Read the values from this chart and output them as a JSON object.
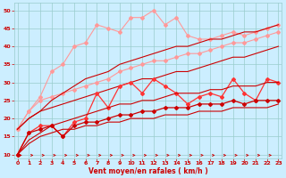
{
  "bg_color": "#cceeff",
  "grid_color": "#99cccc",
  "xlabel": "Vent moyen/en rafales ( km/h )",
  "x_ticks": [
    0,
    1,
    2,
    3,
    4,
    5,
    6,
    7,
    8,
    9,
    10,
    11,
    12,
    13,
    14,
    15,
    16,
    17,
    18,
    19,
    20,
    21,
    22,
    23
  ],
  "ylim": [
    9,
    52
  ],
  "xlim": [
    -0.3,
    23.3
  ],
  "yticks": [
    10,
    15,
    20,
    25,
    30,
    35,
    40,
    45,
    50
  ],
  "line_lp_upper": [
    17,
    22,
    26,
    33,
    35,
    40,
    41,
    46,
    45,
    44,
    48,
    48,
    50,
    46,
    48,
    43,
    42,
    42,
    43,
    44,
    43,
    44,
    45,
    46
  ],
  "line_lp_lower": [
    17,
    22,
    25,
    26,
    27,
    28,
    29,
    30,
    31,
    33,
    34,
    35,
    36,
    36,
    37,
    38,
    38,
    39,
    40,
    41,
    41,
    42,
    43,
    44
  ],
  "line_trend_lp_upper": [
    17,
    20,
    22,
    25,
    27,
    29,
    31,
    32,
    33,
    35,
    36,
    37,
    38,
    39,
    40,
    40,
    41,
    42,
    42,
    43,
    44,
    44,
    45,
    46
  ],
  "line_trend_lp_lower": [
    17,
    20,
    22,
    23,
    24,
    25,
    26,
    27,
    28,
    29,
    30,
    31,
    31,
    32,
    33,
    33,
    34,
    35,
    36,
    37,
    37,
    38,
    39,
    40
  ],
  "line_dr_upper": [
    10,
    16,
    18,
    18,
    15,
    19,
    20,
    27,
    23,
    29,
    30,
    27,
    31,
    29,
    27,
    24,
    26,
    27,
    26,
    31,
    27,
    25,
    31,
    30
  ],
  "line_dr_lower": [
    10,
    16,
    17,
    18,
    15,
    18,
    19,
    19,
    20,
    21,
    21,
    22,
    22,
    23,
    23,
    23,
    24,
    24,
    24,
    25,
    24,
    25,
    25,
    25
  ],
  "line_trend_dr_upper": [
    10,
    14,
    16,
    18,
    19,
    20,
    21,
    22,
    23,
    24,
    24,
    25,
    25,
    26,
    27,
    27,
    27,
    28,
    28,
    29,
    29,
    29,
    30,
    30
  ],
  "line_trend_dr_lower": [
    10,
    13,
    15,
    16,
    17,
    17,
    18,
    18,
    19,
    19,
    20,
    20,
    20,
    21,
    21,
    21,
    22,
    22,
    22,
    23,
    23,
    23,
    23,
    24
  ],
  "light_pink": "#ff9999",
  "dark_red": "#cc0000",
  "medium_red": "#ff3333",
  "label_color": "#cc0000",
  "tick_color": "#cc0000",
  "arrow_color": "#cc0000"
}
